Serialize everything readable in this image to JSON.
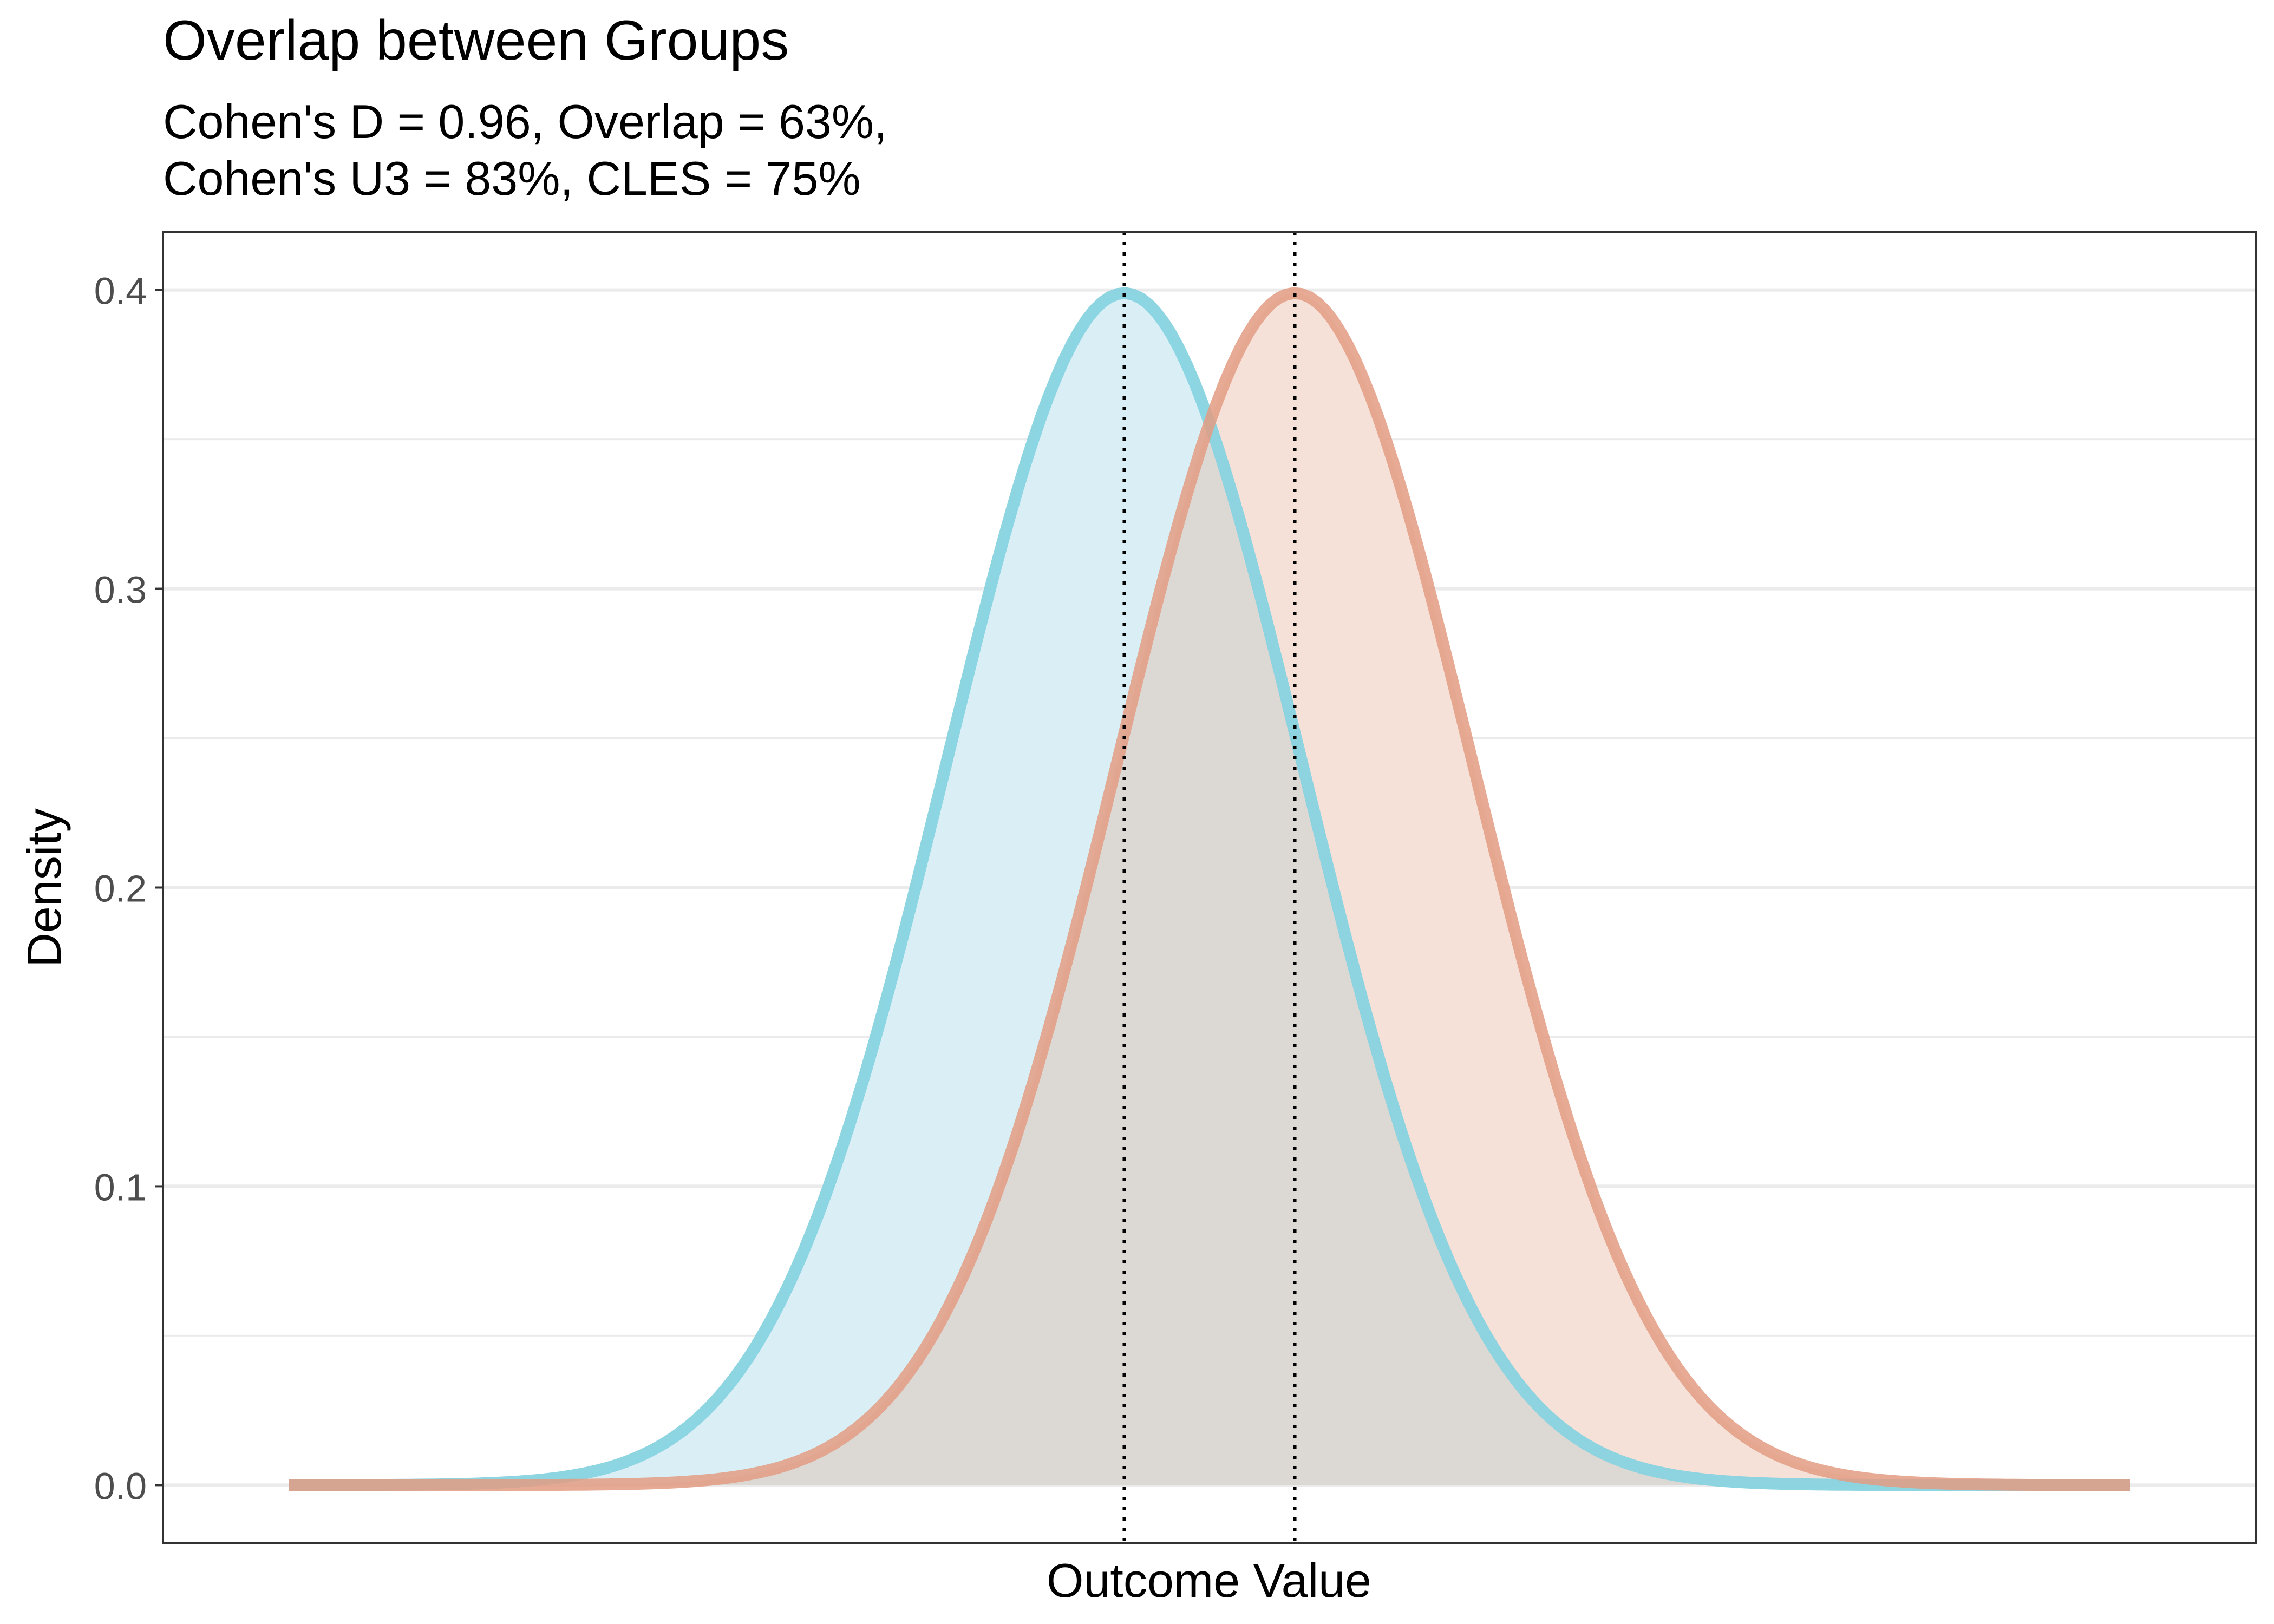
{
  "chart_data": {
    "type": "area",
    "title": "Overlap between Groups",
    "subtitle_lines": [
      "Cohen's D = 0.96, Overlap = 63%,",
      "Cohen's U3 = 83%, CLES = 75%"
    ],
    "xlabel": "Outcome Value",
    "ylabel": "Density",
    "ylim": [
      -0.0195,
      0.4195
    ],
    "xlim": [
      -5.41,
      6.37
    ],
    "yticks": [
      0.0,
      0.1,
      0.2,
      0.3,
      0.4
    ],
    "ytick_labels": [
      "0.0",
      "0.1",
      "0.2",
      "0.3",
      "0.4"
    ],
    "x_tick_labels_shown": false,
    "grid": true,
    "legend": "none",
    "x_range": [
      -4.7,
      5.66
    ],
    "series": [
      {
        "distribution": "normal",
        "mean": 0.0,
        "sd": 1.0,
        "line_color": "#88d3e0",
        "fill_color": "#daeff5"
      },
      {
        "distribution": "normal",
        "mean": 0.96,
        "sd": 1.0,
        "line_color": "#e39c83",
        "fill_color": "#f6e1d9"
      }
    ],
    "overlap_fill_color": "#dcd8d3",
    "vlines": [
      0.0,
      0.96
    ],
    "vline_style": "dotted"
  }
}
